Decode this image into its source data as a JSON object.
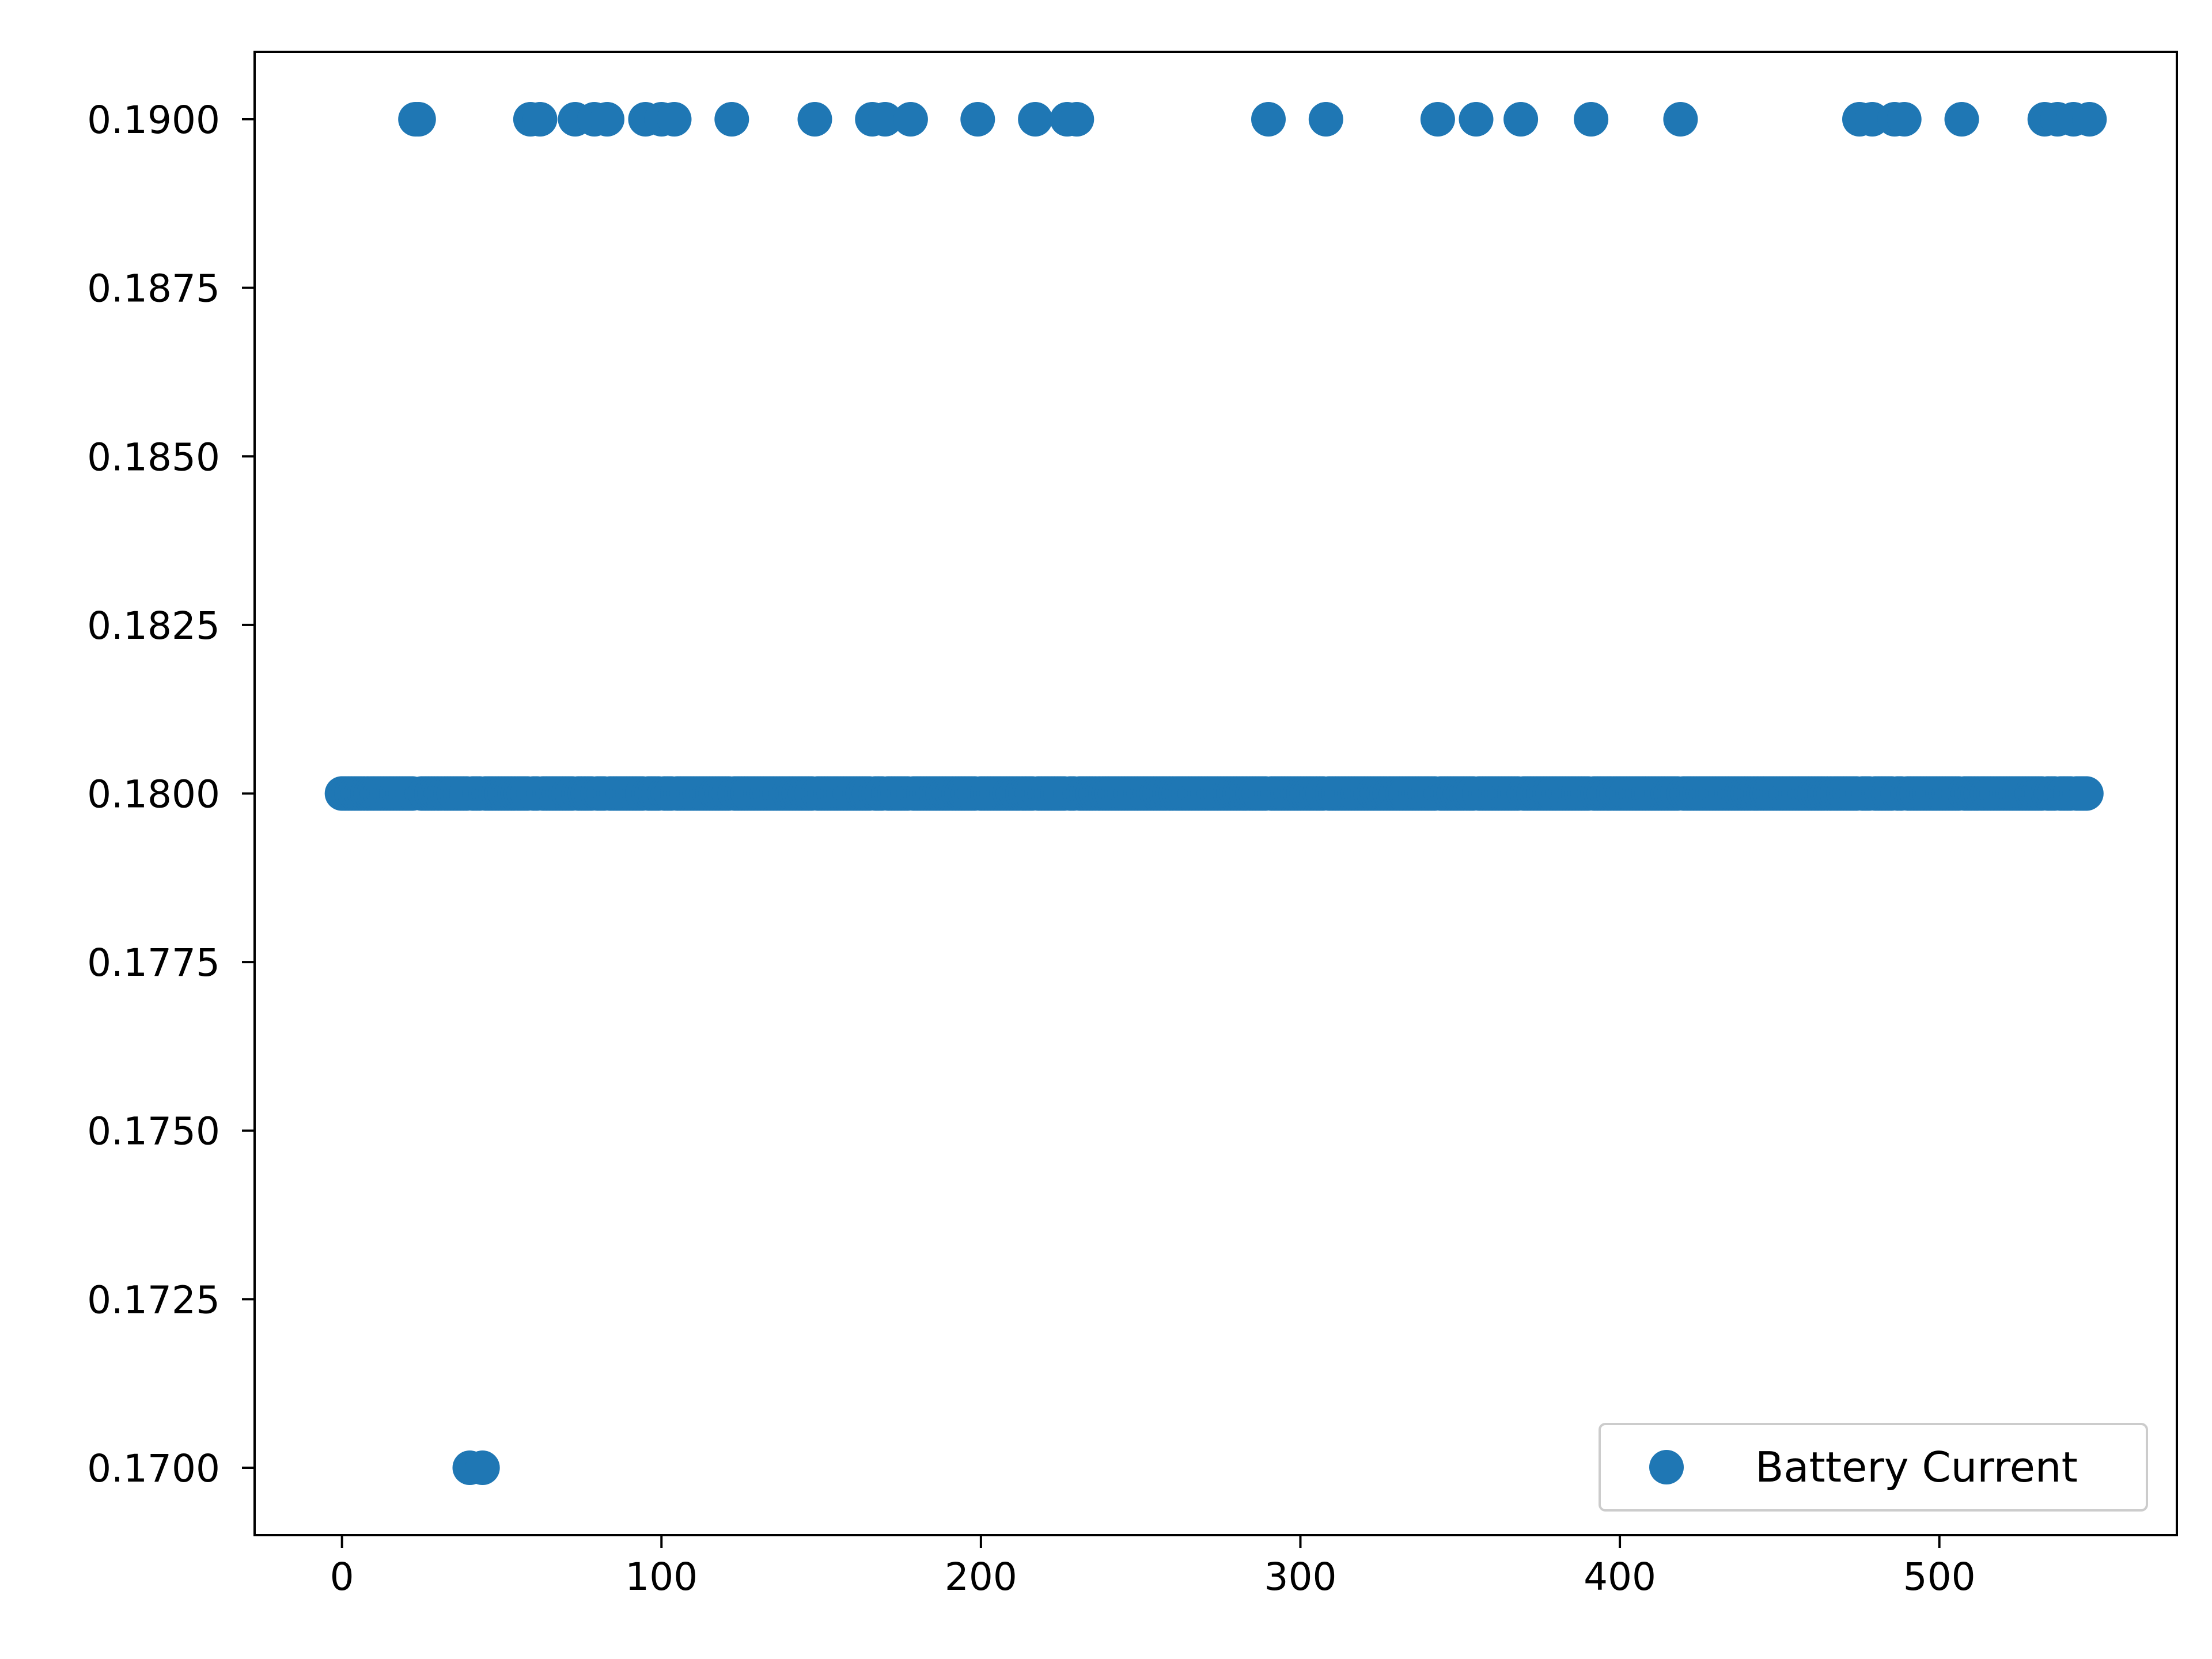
{
  "chart_data": {
    "type": "scatter",
    "title": "",
    "xlabel": "",
    "ylabel": "",
    "xlim": [
      -27.35,
      574.35
    ],
    "ylim": [
      0.169,
      0.191
    ],
    "xticks": [
      0,
      100,
      200,
      300,
      400,
      500
    ],
    "xtick_labels": [
      "0",
      "100",
      "200",
      "300",
      "400",
      "500"
    ],
    "yticks": [
      0.17,
      0.1725,
      0.175,
      0.1775,
      0.18,
      0.1825,
      0.185,
      0.1875,
      0.19
    ],
    "ytick_labels": [
      "0.1700",
      "0.1725",
      "0.1750",
      "0.1775",
      "0.1800",
      "0.1825",
      "0.1850",
      "0.1875",
      "0.1900"
    ],
    "grid": false,
    "legend": {
      "position": "lower-right",
      "entries": [
        "Battery Current"
      ]
    },
    "series": [
      {
        "name": "Battery Current",
        "color": "#1f77b4",
        "marker": "circle",
        "high_value": 0.19,
        "low_value": 0.17,
        "base_value": 0.18,
        "high_x": [
          23,
          24,
          59,
          62,
          73,
          79,
          83,
          95,
          100,
          104,
          122,
          148,
          166,
          170,
          178,
          199,
          217,
          227,
          230,
          290,
          308,
          343,
          355,
          369,
          391,
          419,
          475,
          479,
          486,
          489,
          507,
          533,
          537,
          542,
          547
        ],
        "low_x": [
          40,
          44
        ],
        "x_range": [
          0,
          547
        ]
      }
    ]
  }
}
